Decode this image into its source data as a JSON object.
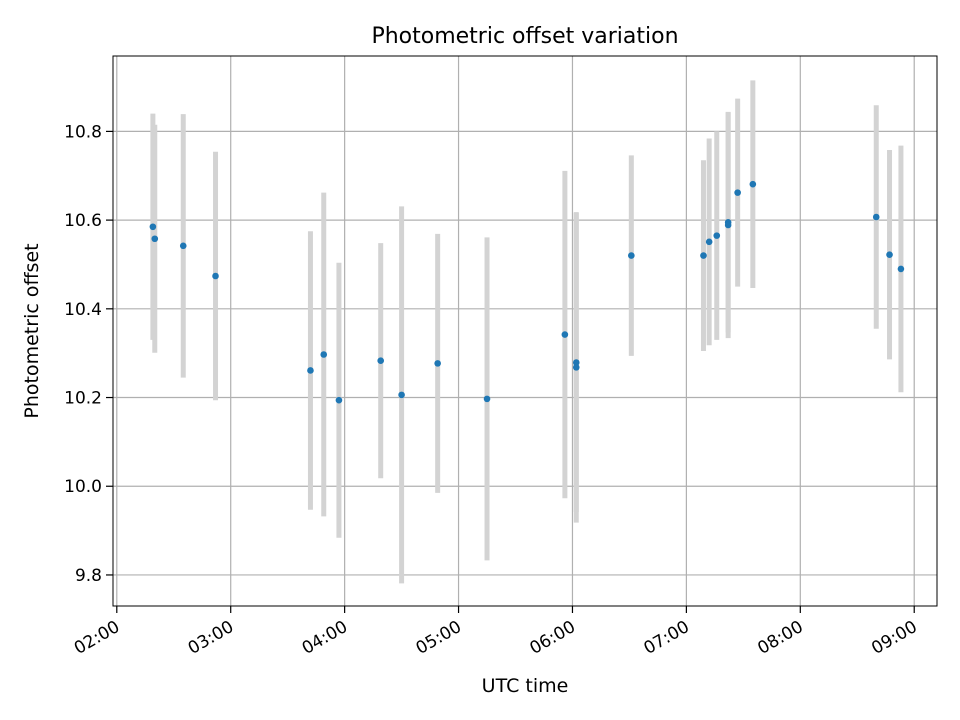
{
  "chart_data": {
    "type": "scatter",
    "title": "Photometric offset variation",
    "xlabel": "UTC time",
    "ylabel": "Photometric offset",
    "x_axis": {
      "kind": "time",
      "ticks": [
        "02:00",
        "03:00",
        "04:00",
        "05:00",
        "06:00",
        "07:00",
        "08:00",
        "09:00"
      ],
      "xlim": [
        "01:58",
        "09:12"
      ]
    },
    "y_axis": {
      "ticks": [
        "9.8",
        "10.0",
        "10.2",
        "10.4",
        "10.6",
        "10.8"
      ],
      "ylim": [
        9.73,
        10.97
      ]
    },
    "grid": true,
    "colors": {
      "marker": "#1f77b4",
      "errorbar": "#d3d3d3",
      "grid": "#b0b0b0"
    },
    "series": [
      {
        "points": [
          {
            "x": "02:19",
            "y": 10.585,
            "yerr": 0.255
          },
          {
            "x": "02:20",
            "y": 10.558,
            "yerr": 0.257
          },
          {
            "x": "02:35",
            "y": 10.542,
            "yerr": 0.297
          },
          {
            "x": "02:52",
            "y": 10.474,
            "yerr": 0.28
          },
          {
            "x": "03:42",
            "y": 10.261,
            "yerr": 0.314
          },
          {
            "x": "03:49",
            "y": 10.297,
            "yerr": 0.365
          },
          {
            "x": "03:57",
            "y": 10.194,
            "yerr": 0.31
          },
          {
            "x": "04:19",
            "y": 10.283,
            "yerr": 0.265
          },
          {
            "x": "04:30",
            "y": 10.206,
            "yerr": 0.425
          },
          {
            "x": "04:49",
            "y": 10.277,
            "yerr": 0.292
          },
          {
            "x": "05:15",
            "y": 10.197,
            "yerr": 0.364
          },
          {
            "x": "05:56",
            "y": 10.342,
            "yerr": 0.369
          },
          {
            "x": "06:02",
            "y": 10.279,
            "yerr": 0.337
          },
          {
            "x": "06:02",
            "y": 10.268,
            "yerr": 0.35
          },
          {
            "x": "06:31",
            "y": 10.52,
            "yerr": 0.226
          },
          {
            "x": "07:09",
            "y": 10.52,
            "yerr": 0.215
          },
          {
            "x": "07:12",
            "y": 10.551,
            "yerr": 0.233
          },
          {
            "x": "07:16",
            "y": 10.565,
            "yerr": 0.235
          },
          {
            "x": "07:22",
            "y": 10.595,
            "yerr": 0.248
          },
          {
            "x": "07:22",
            "y": 10.589,
            "yerr": 0.255
          },
          {
            "x": "07:27",
            "y": 10.662,
            "yerr": 0.212
          },
          {
            "x": "07:35",
            "y": 10.681,
            "yerr": 0.234
          },
          {
            "x": "08:40",
            "y": 10.607,
            "yerr": 0.252
          },
          {
            "x": "08:47",
            "y": 10.522,
            "yerr": 0.236
          },
          {
            "x": "08:53",
            "y": 10.49,
            "yerr": 0.278
          }
        ]
      }
    ]
  }
}
